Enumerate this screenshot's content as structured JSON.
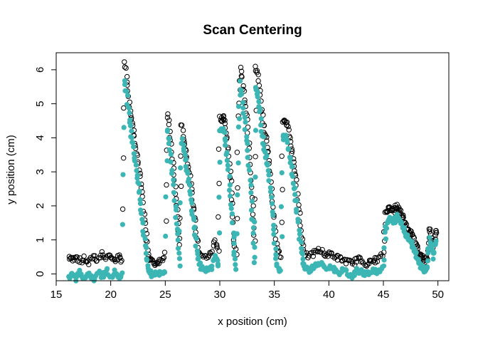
{
  "chart_data": {
    "type": "scatter",
    "title": "Scan Centering",
    "xlabel": "x position (cm)",
    "ylabel": "y position (cm)",
    "xlim": [
      15,
      51
    ],
    "ylim": [
      -0.2,
      6.5
    ],
    "xticks": [
      15,
      20,
      25,
      30,
      35,
      40,
      45,
      50
    ],
    "yticks": [
      0,
      1,
      2,
      3,
      4,
      5,
      6
    ],
    "grid": false,
    "legend": "none",
    "series": [
      {
        "color": "#000000",
        "marker": "open-circle",
        "points": [
          [
            16.2,
            0.5
          ],
          [
            16.5,
            0.4
          ],
          [
            16.8,
            0.55
          ],
          [
            17.2,
            0.35
          ],
          [
            17.6,
            0.45
          ],
          [
            18.0,
            0.3
          ],
          [
            18.4,
            0.55
          ],
          [
            18.8,
            0.4
          ],
          [
            19.2,
            0.6
          ],
          [
            19.6,
            0.45
          ],
          [
            20.0,
            0.55
          ],
          [
            20.4,
            0.35
          ],
          [
            20.8,
            0.5
          ],
          [
            21.0,
            0.4
          ],
          [
            21.3,
            6.3
          ],
          [
            21.5,
            5.7
          ],
          [
            21.7,
            5.1
          ],
          [
            21.9,
            4.6
          ],
          [
            22.1,
            4.2
          ],
          [
            22.3,
            3.8
          ],
          [
            22.5,
            3.3
          ],
          [
            22.7,
            2.8
          ],
          [
            22.9,
            2.2
          ],
          [
            23.1,
            1.6
          ],
          [
            23.3,
            1.0
          ],
          [
            23.5,
            0.5
          ],
          [
            23.7,
            0.4
          ],
          [
            24.0,
            0.3
          ],
          [
            24.3,
            0.35
          ],
          [
            24.6,
            0.4
          ],
          [
            25.0,
            0.6
          ],
          [
            25.2,
            4.7
          ],
          [
            25.4,
            4.2
          ],
          [
            25.6,
            3.6
          ],
          [
            25.8,
            2.9
          ],
          [
            26.0,
            2.2
          ],
          [
            26.2,
            1.5
          ],
          [
            26.3,
            0.8
          ],
          [
            26.5,
            4.4
          ],
          [
            26.7,
            4.0
          ],
          [
            26.9,
            3.6
          ],
          [
            27.1,
            3.2
          ],
          [
            27.3,
            2.7
          ],
          [
            27.5,
            2.2
          ],
          [
            27.7,
            1.7
          ],
          [
            27.9,
            1.1
          ],
          [
            28.1,
            0.7
          ],
          [
            28.4,
            0.5
          ],
          [
            28.8,
            0.5
          ],
          [
            29.2,
            0.6
          ],
          [
            29.6,
            1.0
          ],
          [
            29.9,
            0.7
          ],
          [
            30.0,
            4.6
          ],
          [
            30.2,
            4.5
          ],
          [
            30.4,
            4.6
          ],
          [
            30.6,
            4.2
          ],
          [
            30.8,
            3.6
          ],
          [
            31.0,
            2.9
          ],
          [
            31.2,
            2.0
          ],
          [
            31.3,
            1.0
          ],
          [
            31.5,
            0.6
          ],
          [
            31.7,
            4.6
          ],
          [
            31.9,
            6.1
          ],
          [
            32.1,
            5.6
          ],
          [
            32.3,
            5.0
          ],
          [
            32.5,
            4.5
          ],
          [
            32.7,
            3.7
          ],
          [
            32.9,
            2.8
          ],
          [
            33.1,
            1.8
          ],
          [
            33.2,
            0.9
          ],
          [
            33.3,
            6.1
          ],
          [
            33.5,
            5.8
          ],
          [
            33.7,
            5.2
          ],
          [
            33.9,
            4.6
          ],
          [
            34.1,
            4.2
          ],
          [
            34.3,
            3.9
          ],
          [
            34.5,
            3.4
          ],
          [
            34.7,
            2.7
          ],
          [
            34.9,
            2.0
          ],
          [
            35.1,
            1.2
          ],
          [
            35.3,
            0.7
          ],
          [
            35.6,
            0.5
          ],
          [
            35.8,
            4.4
          ],
          [
            36.0,
            4.5
          ],
          [
            36.2,
            4.4
          ],
          [
            36.4,
            4.0
          ],
          [
            36.6,
            3.6
          ],
          [
            36.8,
            3.2
          ],
          [
            37.0,
            2.7
          ],
          [
            37.2,
            2.1
          ],
          [
            37.4,
            1.4
          ],
          [
            37.6,
            0.9
          ],
          [
            37.8,
            0.6
          ],
          [
            38.2,
            0.5
          ],
          [
            38.6,
            0.6
          ],
          [
            39.0,
            0.7
          ],
          [
            39.4,
            0.65
          ],
          [
            39.8,
            0.55
          ],
          [
            40.2,
            0.6
          ],
          [
            40.6,
            0.5
          ],
          [
            41.0,
            0.45
          ],
          [
            41.4,
            0.4
          ],
          [
            41.8,
            0.35
          ],
          [
            42.2,
            0.3
          ],
          [
            42.6,
            0.45
          ],
          [
            43.0,
            0.4
          ],
          [
            43.4,
            0.3
          ],
          [
            43.8,
            0.35
          ],
          [
            44.2,
            0.4
          ],
          [
            44.6,
            0.45
          ],
          [
            45.0,
            0.6
          ],
          [
            45.2,
            1.8
          ],
          [
            45.4,
            1.9
          ],
          [
            45.6,
            1.95
          ],
          [
            45.8,
            1.9
          ],
          [
            46.0,
            1.85
          ],
          [
            46.2,
            2.0
          ],
          [
            46.4,
            1.9
          ],
          [
            46.6,
            1.8
          ],
          [
            46.8,
            1.65
          ],
          [
            47.0,
            1.5
          ],
          [
            47.2,
            1.35
          ],
          [
            47.4,
            1.3
          ],
          [
            47.6,
            1.2
          ],
          [
            47.8,
            1.0
          ],
          [
            48.0,
            0.85
          ],
          [
            48.2,
            0.7
          ],
          [
            48.4,
            0.55
          ],
          [
            48.6,
            0.45
          ],
          [
            48.8,
            0.4
          ],
          [
            49.0,
            0.5
          ],
          [
            49.2,
            1.3
          ],
          [
            49.4,
            1.1
          ],
          [
            49.6,
            0.8
          ],
          [
            49.8,
            1.2
          ]
        ]
      },
      {
        "color": "#3cb6b4",
        "marker": "filled-circle",
        "points": [
          [
            16.2,
            -0.1
          ],
          [
            16.5,
            0.0
          ],
          [
            16.8,
            -0.15
          ],
          [
            17.2,
            0.05
          ],
          [
            17.6,
            -0.1
          ],
          [
            18.0,
            0.0
          ],
          [
            18.4,
            -0.15
          ],
          [
            18.8,
            0.05
          ],
          [
            19.2,
            -0.1
          ],
          [
            19.6,
            0.1
          ],
          [
            20.0,
            -0.05
          ],
          [
            20.4,
            0.05
          ],
          [
            20.8,
            -0.1
          ],
          [
            21.0,
            0.0
          ],
          [
            21.3,
            5.7
          ],
          [
            21.5,
            5.2
          ],
          [
            21.7,
            4.6
          ],
          [
            21.9,
            4.1
          ],
          [
            22.1,
            3.7
          ],
          [
            22.3,
            3.2
          ],
          [
            22.5,
            2.7
          ],
          [
            22.7,
            2.2
          ],
          [
            22.9,
            1.6
          ],
          [
            23.1,
            1.0
          ],
          [
            23.3,
            0.5
          ],
          [
            23.5,
            0.1
          ],
          [
            23.7,
            -0.05
          ],
          [
            24.0,
            0.0
          ],
          [
            24.3,
            0.0
          ],
          [
            24.6,
            0.05
          ],
          [
            25.0,
            0.1
          ],
          [
            25.2,
            4.3
          ],
          [
            25.4,
            3.8
          ],
          [
            25.6,
            3.1
          ],
          [
            25.8,
            2.4
          ],
          [
            26.0,
            1.7
          ],
          [
            26.2,
            1.0
          ],
          [
            26.3,
            0.3
          ],
          [
            26.5,
            4.0
          ],
          [
            26.7,
            3.6
          ],
          [
            26.9,
            3.2
          ],
          [
            27.1,
            2.8
          ],
          [
            27.3,
            2.3
          ],
          [
            27.5,
            1.8
          ],
          [
            27.7,
            1.3
          ],
          [
            27.9,
            0.7
          ],
          [
            28.1,
            0.3
          ],
          [
            28.4,
            0.1
          ],
          [
            28.8,
            0.15
          ],
          [
            29.2,
            0.2
          ],
          [
            29.6,
            0.5
          ],
          [
            29.9,
            0.3
          ],
          [
            30.0,
            4.2
          ],
          [
            30.2,
            4.3
          ],
          [
            30.4,
            4.1
          ],
          [
            30.6,
            3.6
          ],
          [
            30.8,
            3.0
          ],
          [
            31.0,
            2.3
          ],
          [
            31.2,
            1.5
          ],
          [
            31.3,
            0.6
          ],
          [
            31.5,
            0.2
          ],
          [
            31.7,
            4.3
          ],
          [
            31.9,
            5.6
          ],
          [
            32.1,
            5.1
          ],
          [
            32.3,
            4.4
          ],
          [
            32.5,
            3.8
          ],
          [
            32.7,
            3.0
          ],
          [
            32.9,
            2.1
          ],
          [
            33.1,
            1.2
          ],
          [
            33.2,
            0.3
          ],
          [
            33.3,
            5.5
          ],
          [
            33.5,
            5.2
          ],
          [
            33.7,
            4.7
          ],
          [
            33.9,
            4.1
          ],
          [
            34.1,
            3.7
          ],
          [
            34.3,
            3.4
          ],
          [
            34.5,
            2.9
          ],
          [
            34.7,
            2.2
          ],
          [
            34.9,
            1.5
          ],
          [
            35.1,
            0.7
          ],
          [
            35.3,
            0.2
          ],
          [
            35.6,
            0.1
          ],
          [
            35.8,
            4.0
          ],
          [
            36.0,
            4.1
          ],
          [
            36.2,
            3.9
          ],
          [
            36.4,
            3.5
          ],
          [
            36.6,
            3.1
          ],
          [
            36.8,
            2.6
          ],
          [
            37.0,
            2.1
          ],
          [
            37.2,
            1.5
          ],
          [
            37.4,
            0.9
          ],
          [
            37.6,
            0.4
          ],
          [
            37.8,
            0.2
          ],
          [
            38.2,
            0.1
          ],
          [
            38.6,
            0.2
          ],
          [
            39.0,
            0.3
          ],
          [
            39.4,
            0.25
          ],
          [
            39.8,
            0.15
          ],
          [
            40.2,
            0.2
          ],
          [
            40.6,
            0.1
          ],
          [
            41.0,
            0.05
          ],
          [
            41.4,
            0.1
          ],
          [
            41.8,
            0.0
          ],
          [
            42.2,
            -0.05
          ],
          [
            42.6,
            0.1
          ],
          [
            43.0,
            0.05
          ],
          [
            43.4,
            0.0
          ],
          [
            43.8,
            0.05
          ],
          [
            44.2,
            0.1
          ],
          [
            44.6,
            0.05
          ],
          [
            45.0,
            0.2
          ],
          [
            45.2,
            1.3
          ],
          [
            45.4,
            1.5
          ],
          [
            45.6,
            1.6
          ],
          [
            45.8,
            1.55
          ],
          [
            46.0,
            1.5
          ],
          [
            46.2,
            1.7
          ],
          [
            46.4,
            1.6
          ],
          [
            46.6,
            1.5
          ],
          [
            46.8,
            1.35
          ],
          [
            47.0,
            1.2
          ],
          [
            47.2,
            1.05
          ],
          [
            47.4,
            1.0
          ],
          [
            47.6,
            0.9
          ],
          [
            47.8,
            0.7
          ],
          [
            48.0,
            0.55
          ],
          [
            48.2,
            0.4
          ],
          [
            48.4,
            0.25
          ],
          [
            48.6,
            0.15
          ],
          [
            48.8,
            0.1
          ],
          [
            49.0,
            0.2
          ],
          [
            49.2,
            1.0
          ],
          [
            49.4,
            0.8
          ],
          [
            49.6,
            0.5
          ],
          [
            49.8,
            0.9
          ]
        ]
      }
    ]
  }
}
